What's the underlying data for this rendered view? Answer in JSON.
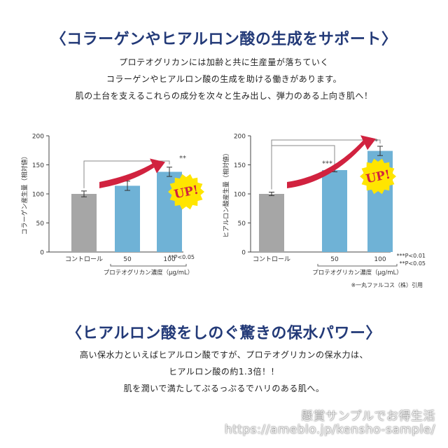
{
  "section1": {
    "heading": "〈コラーゲンやヒアルロン酸の生成をサポート〉",
    "lines": [
      "プロテオグリカンには加齢と共に生産量が落ちていく",
      "コラーゲンやヒアルロン酸の生成を助ける働きがあります。",
      "肌の土台を支えるこれらの成分を次々と生み出し、弾力のある上向き肌へ！"
    ]
  },
  "colors": {
    "control": "#a6a6a6",
    "treated": "#6fb2d6",
    "arrow": "#d1223f",
    "badge_fill": "#ffe500",
    "badge_text": "#d1223f",
    "heading": "#233a78"
  },
  "chart_data": [
    {
      "type": "bar",
      "ylabel": "コラーゲン産生量（相対値）",
      "categories": [
        "コントロール",
        "50",
        "100"
      ],
      "xgroup_label": "プロテオグリカン濃度（μg/mL）",
      "values": [
        100,
        114,
        138
      ],
      "errors": [
        5,
        8,
        8
      ],
      "significance": [
        "",
        "",
        "**"
      ],
      "ylim": [
        0,
        200
      ],
      "yticks": [
        0,
        50,
        100,
        150,
        200
      ],
      "badge": "UP!",
      "footnotes": [
        "**P<0.05"
      ]
    },
    {
      "type": "bar",
      "ylabel": "ヒアルロン酸産生量（相対値）",
      "categories": [
        "コントロール",
        "50",
        "100"
      ],
      "xgroup_label": "プロテオグリカン濃度（μg/mL）",
      "values": [
        100,
        141,
        174
      ],
      "errors": [
        3,
        3,
        8
      ],
      "significance": [
        "",
        "***",
        "***"
      ],
      "ylim": [
        0,
        200
      ],
      "yticks": [
        0,
        50,
        100,
        150,
        200
      ],
      "badge": "UP!",
      "footnotes": [
        "***P<0.01",
        "**P<0.05"
      ],
      "source": "※一丸ファルコス（株）引用"
    }
  ],
  "section2": {
    "heading": "〈ヒアルロン酸をしのぐ驚きの保水パワー〉",
    "lines": [
      "高い保水力といえばヒアルロン酸ですが、プロテオグリカンの保水力は、",
      "ヒアルロン酸の約1.3倍！！",
      "肌を潤いで満たしてぷるっぷるでハリのある肌へ。"
    ]
  },
  "watermark": {
    "line1": "懸賞サンプルでお得生活",
    "line2": "https://ameblo.jp/kensho-sample/"
  }
}
